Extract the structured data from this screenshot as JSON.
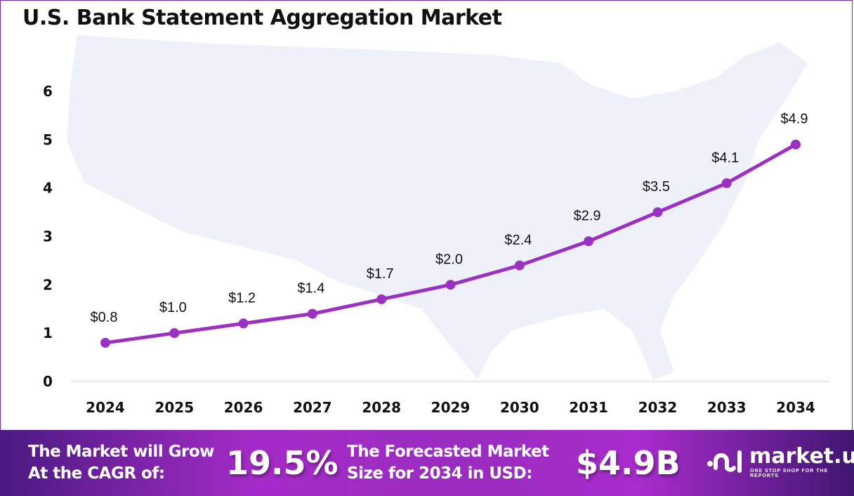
{
  "title": "U.S. Bank Statement Aggregation Market",
  "chart_data": {
    "type": "line",
    "title": "U.S. Bank Statement Aggregation Market",
    "categories": [
      "2024",
      "2025",
      "2026",
      "2027",
      "2028",
      "2029",
      "2030",
      "2031",
      "2032",
      "2033",
      "2034"
    ],
    "values": [
      0.8,
      1.0,
      1.2,
      1.4,
      1.7,
      2.0,
      2.4,
      2.9,
      3.5,
      4.1,
      4.9
    ],
    "data_labels": [
      "$0.8",
      "$1.0",
      "$1.2",
      "$1.4",
      "$1.7",
      "$2.0",
      "$2.4",
      "$2.9",
      "$3.5",
      "$4.1",
      "$4.9"
    ],
    "yticks": [
      "0",
      "1",
      "2",
      "3",
      "4",
      "5",
      "6"
    ],
    "ylim": [
      0,
      6
    ],
    "grid": false,
    "line_color": "#9b30c2"
  },
  "banner": {
    "cagr_text": [
      "The Market will Grow",
      "At the CAGR of:"
    ],
    "cagr_value": "19.5%",
    "forecast_text": [
      "The Forecasted Market",
      "Size for 2034 in USD:"
    ],
    "forecast_value": "$4.9B",
    "logo": {
      "name": "market.us",
      "tagline": "ONE STOP SHOP FOR THE REPORTS"
    }
  }
}
